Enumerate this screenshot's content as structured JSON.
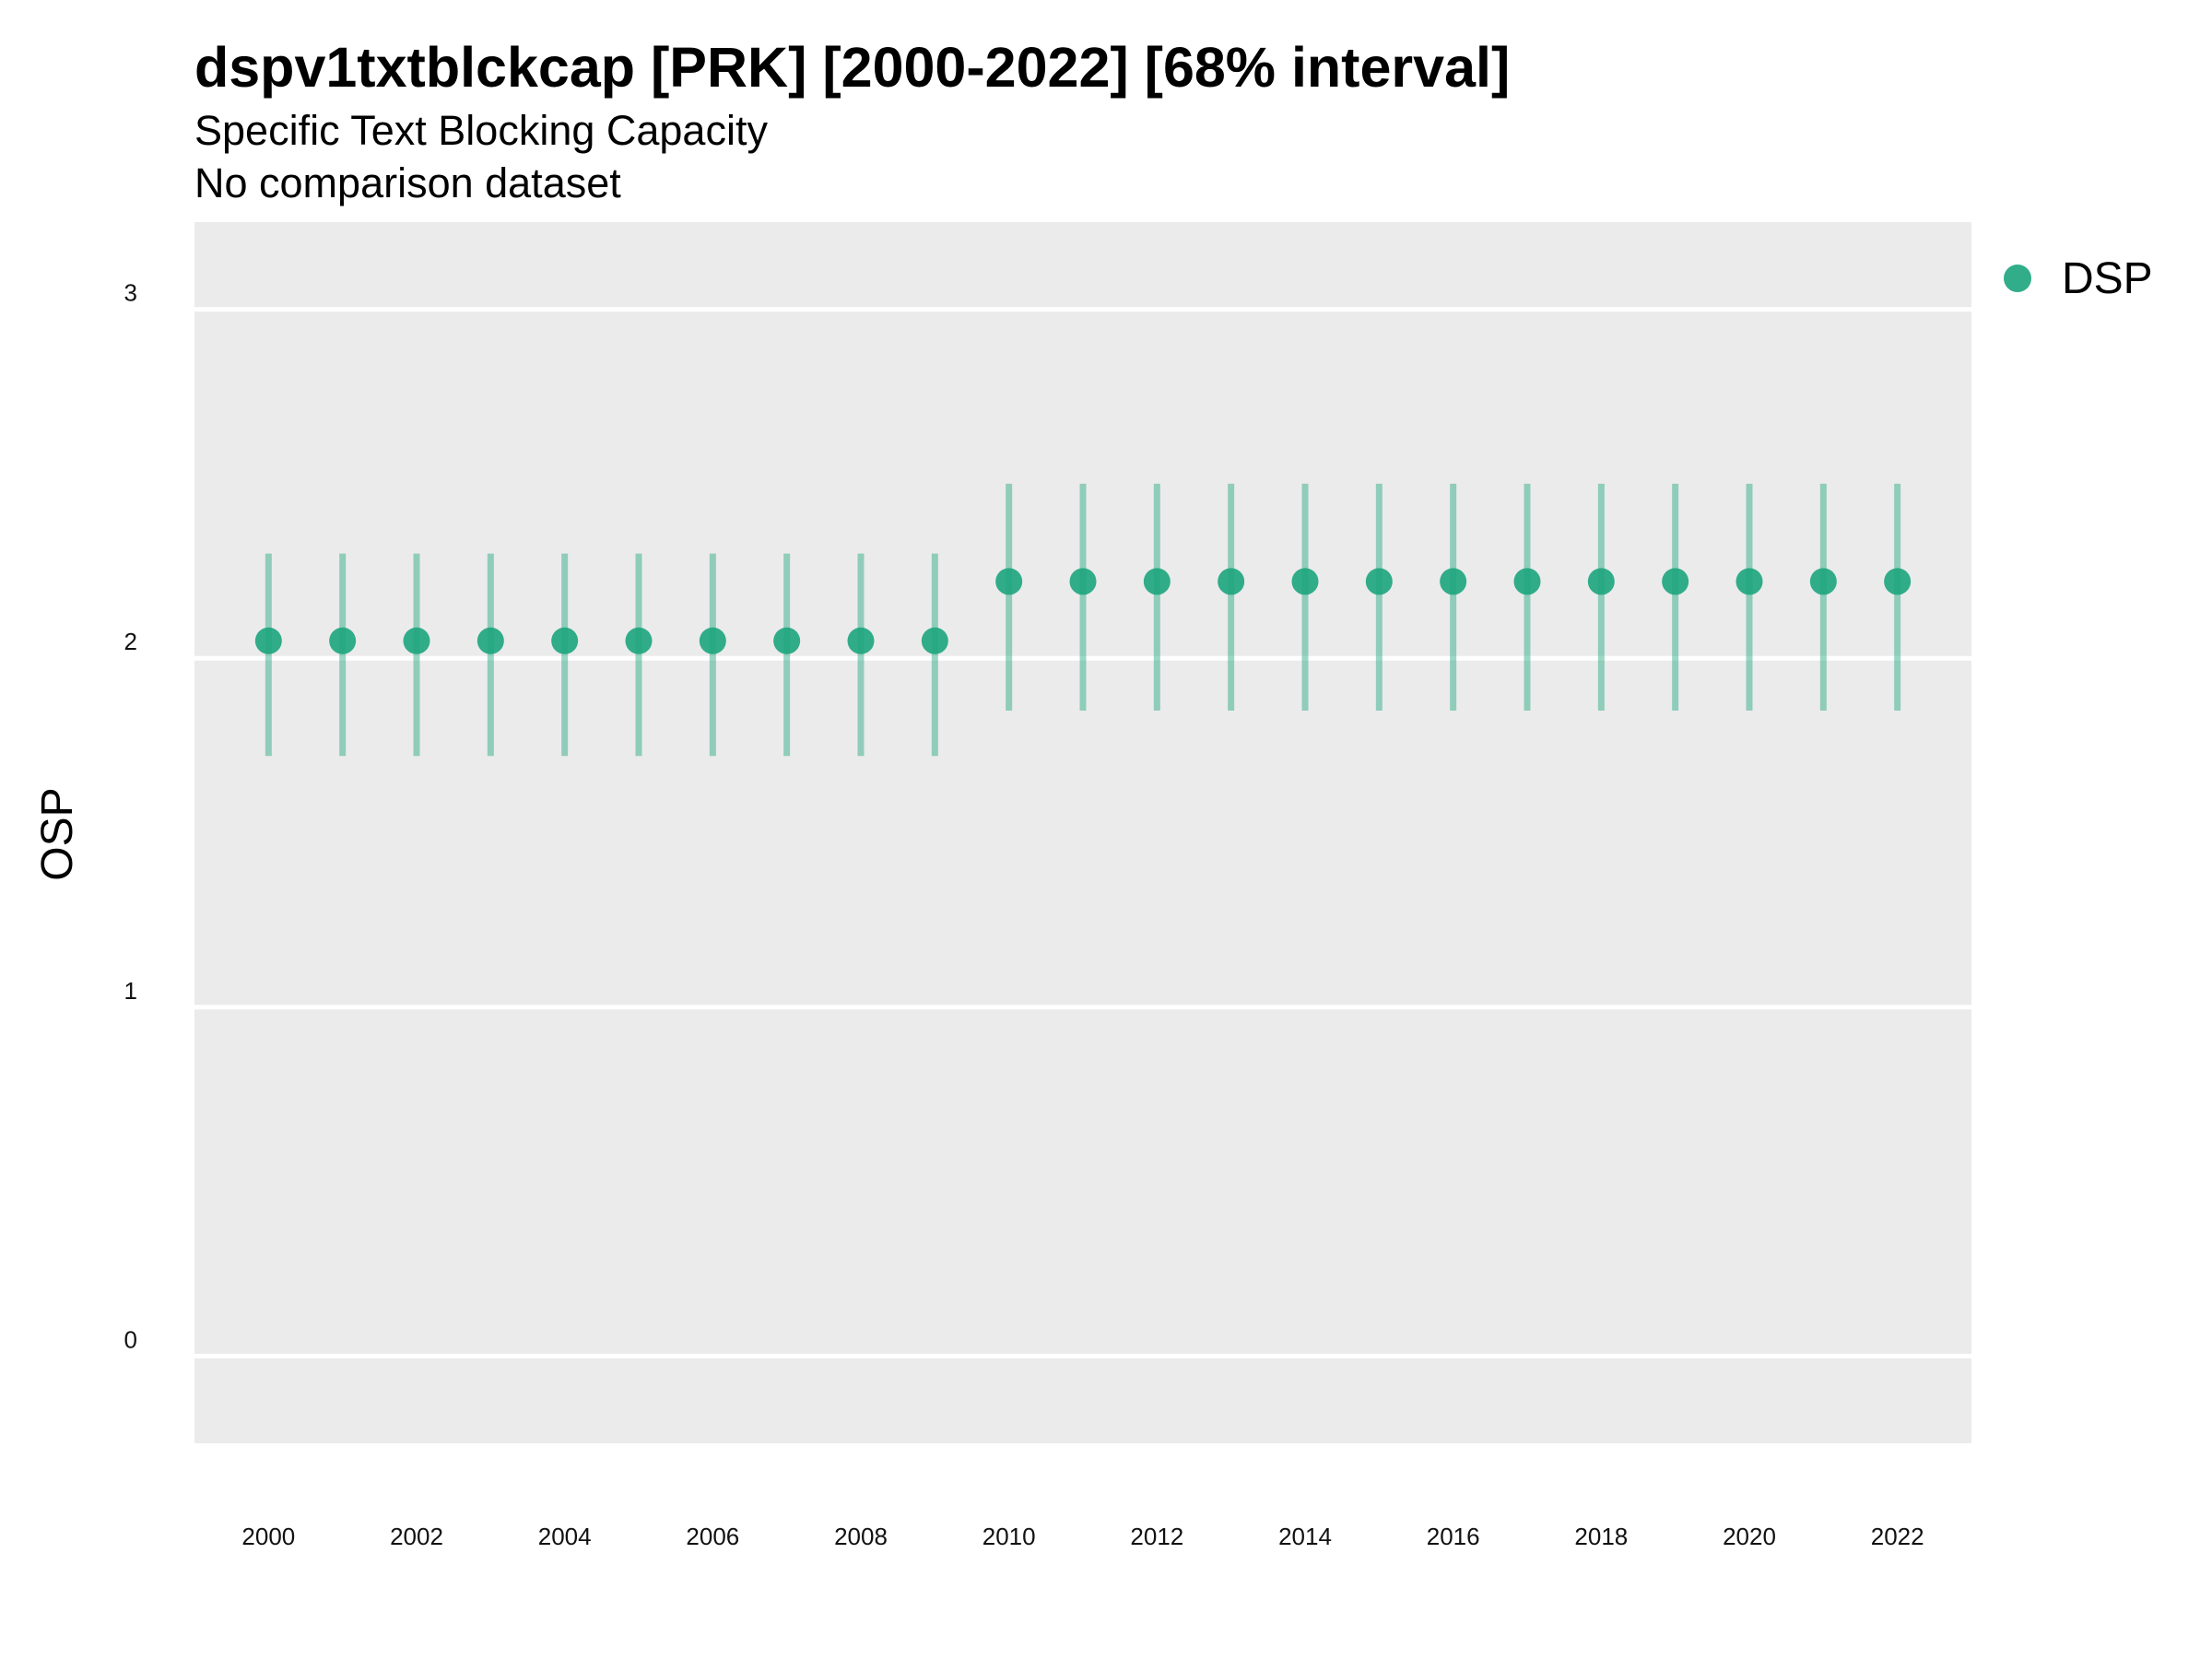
{
  "chart_data": {
    "type": "scatter",
    "title": "dspv1txtblckcap [PRK] [2000-2022] [68% interval]",
    "subtitle": "Specific Text Blocking Capacity",
    "caption": "No comparison dataset",
    "xlabel": "",
    "ylabel": "OSP",
    "ylim": [
      -0.25,
      3.25
    ],
    "yticks": [
      0,
      1,
      2,
      3
    ],
    "xticks": [
      2000,
      2002,
      2004,
      2006,
      2008,
      2010,
      2012,
      2014,
      2016,
      2018,
      2020,
      2022
    ],
    "xlim": [
      1999,
      2023
    ],
    "grid": true,
    "legend_position": "right",
    "series": [
      {
        "name": "DSP",
        "color": "#1FA67F",
        "x": [
          2000,
          2001,
          2002,
          2003,
          2004,
          2005,
          2006,
          2007,
          2008,
          2009,
          2010,
          2011,
          2012,
          2013,
          2014,
          2015,
          2016,
          2017,
          2018,
          2019,
          2020,
          2021,
          2022
        ],
        "y": [
          2.05,
          2.05,
          2.05,
          2.05,
          2.05,
          2.05,
          2.05,
          2.05,
          2.05,
          2.05,
          2.22,
          2.22,
          2.22,
          2.22,
          2.22,
          2.22,
          2.22,
          2.22,
          2.22,
          2.22,
          2.22,
          2.22,
          2.22
        ],
        "lower": [
          1.72,
          1.72,
          1.72,
          1.72,
          1.72,
          1.72,
          1.72,
          1.72,
          1.72,
          1.72,
          1.85,
          1.85,
          1.85,
          1.85,
          1.85,
          1.85,
          1.85,
          1.85,
          1.85,
          1.85,
          1.85,
          1.85,
          1.85
        ],
        "upper": [
          2.3,
          2.3,
          2.3,
          2.3,
          2.3,
          2.3,
          2.3,
          2.3,
          2.3,
          2.3,
          2.5,
          2.5,
          2.5,
          2.5,
          2.5,
          2.5,
          2.5,
          2.5,
          2.5,
          2.5,
          2.5,
          2.5,
          2.5
        ]
      }
    ]
  }
}
